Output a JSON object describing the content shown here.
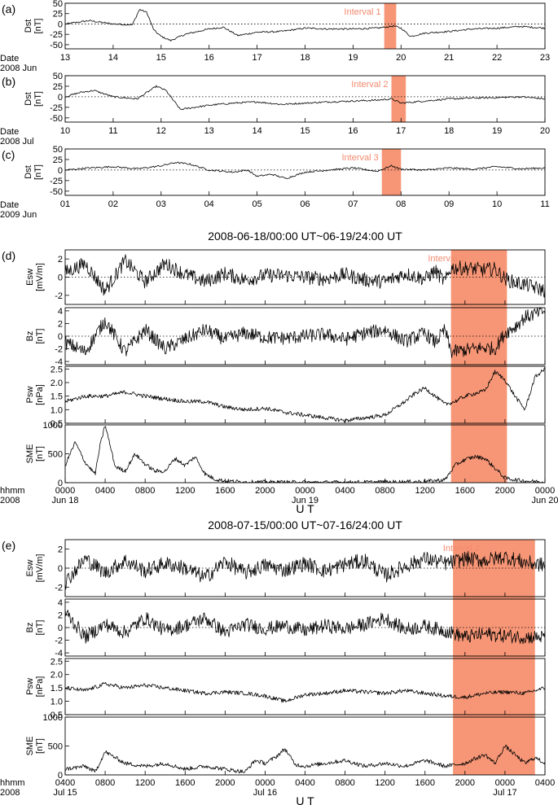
{
  "dst_panels": [
    {
      "panel_label": "(a)",
      "ylabel": [
        "Dst",
        "[nT]"
      ],
      "date_label": [
        "Date",
        "2008 Jun"
      ],
      "ticks": [
        "13",
        "14",
        "15",
        "16",
        "17",
        "18",
        "19",
        "20",
        "21",
        "22",
        "23"
      ],
      "yticks": [
        "50",
        "25",
        "0",
        "-25",
        "-50"
      ],
      "shade": {
        "label": "Interval 1",
        "color": "#f7906f"
      }
    },
    {
      "panel_label": "(b)",
      "ylabel": [
        "Dst",
        "[nT]"
      ],
      "date_label": [
        "Date",
        "2008 Jul"
      ],
      "ticks": [
        "10",
        "11",
        "12",
        "13",
        "14",
        "15",
        "16",
        "17",
        "18",
        "19",
        "20"
      ],
      "yticks": [
        "50",
        "25",
        "0",
        "-25",
        "-50"
      ],
      "shade": {
        "label": "Interval 2",
        "color": "#f7906f"
      }
    },
    {
      "panel_label": "(c)",
      "ylabel": [
        "Dst",
        "[nT]"
      ],
      "date_label": [
        "Date",
        "2009 Jun"
      ],
      "ticks": [
        "01",
        "02",
        "03",
        "04",
        "05",
        "06",
        "07",
        "08",
        "09",
        "10",
        "11"
      ],
      "yticks": [
        "50",
        "25",
        "0",
        "-25",
        "-50"
      ],
      "shade": {
        "label": "Interval 3",
        "color": "#f7906f"
      }
    }
  ],
  "groups": [
    {
      "panel_label": "(d)",
      "title": "2008-06-18/00:00 UT~06-19/24:00 UT",
      "interval_label": "Interval 1",
      "xlabel": "U T",
      "hhmm_label": [
        "hhmm",
        "2008"
      ],
      "xticks": [
        "0000",
        "0400",
        "0800",
        "1200",
        "1600",
        "2000",
        "0000",
        "0400",
        "0800",
        "1200",
        "1600",
        "2000",
        "0000"
      ],
      "xtick_dates": [
        [
          "Jun 18",
          0
        ],
        [
          "Jun 19",
          6
        ],
        [
          "Jun 20",
          12
        ]
      ],
      "panels": [
        {
          "ylabel": [
            "Esw",
            "[mV/m]"
          ],
          "yticks": [
            "2",
            "0",
            "-2"
          ]
        },
        {
          "ylabel": [
            "Bz",
            "[nT]"
          ],
          "yticks": [
            "4",
            "2",
            "0",
            "-2",
            "-4"
          ]
        },
        {
          "ylabel": [
            "Psw",
            "[nPa]"
          ],
          "yticks": [
            "2.5",
            "2.0",
            "1.5",
            "1.0",
            "0.5"
          ]
        },
        {
          "ylabel": [
            "SME",
            "[nT]"
          ],
          "yticks": [
            "1000",
            "500",
            "0"
          ]
        }
      ]
    },
    {
      "panel_label": "(e)",
      "title": "2008-07-15/00:00 UT~07-16/24:00 UT",
      "interval_label": "Interval 2",
      "xlabel": "U T",
      "hhmm_label": [
        "hhmm",
        "2008"
      ],
      "xticks": [
        "0400",
        "0800",
        "1200",
        "1600",
        "2000",
        "0000",
        "0400",
        "0800",
        "1200",
        "1600",
        "2000",
        "0000",
        "0400"
      ],
      "xtick_dates": [
        [
          "Jul 15",
          0
        ],
        [
          "Jul 16",
          5
        ],
        [
          "Jul 17",
          11
        ]
      ],
      "panels": [
        {
          "ylabel": [
            "Esw",
            "[mV/m]"
          ],
          "yticks": [
            "2",
            "0",
            "-2"
          ]
        },
        {
          "ylabel": [
            "Bz",
            "[nT]"
          ],
          "yticks": [
            "4",
            "2",
            "0",
            "-2",
            "-4"
          ]
        },
        {
          "ylabel": [
            "Psw",
            "[nPa]"
          ],
          "yticks": [
            "2.5",
            "2.0",
            "1.5",
            "1.0",
            "0.5"
          ]
        },
        {
          "ylabel": [
            "SME",
            "[nT]"
          ],
          "yticks": [
            "1000",
            "500",
            "0"
          ]
        }
      ]
    }
  ],
  "chart_data": [
    {
      "type": "line",
      "panel": "(a)",
      "ylabel": "Dst [nT]",
      "xlabel": "Date 2008 Jun",
      "xlim": [
        13,
        23
      ],
      "ylim": [
        -60,
        50
      ],
      "shaded_interval": {
        "label": "Interval 1",
        "x": [
          19.65,
          19.9
        ]
      },
      "x": [
        13.0,
        13.5,
        14.0,
        14.4,
        14.55,
        14.7,
        14.85,
        15.0,
        15.2,
        15.5,
        16.0,
        16.3,
        16.6,
        17.0,
        17.5,
        18.0,
        18.5,
        19.0,
        19.5,
        19.85,
        20.0,
        20.2,
        20.5,
        21.0,
        21.5,
        22.0,
        22.5,
        23.0
      ],
      "values": [
        0,
        8,
        0,
        -2,
        35,
        28,
        -15,
        -30,
        -40,
        -25,
        -12,
        -8,
        -28,
        -20,
        -18,
        -10,
        -12,
        -12,
        -10,
        -5,
        -10,
        -30,
        -22,
        -18,
        -12,
        -10,
        -6,
        -10
      ]
    },
    {
      "type": "line",
      "panel": "(b)",
      "ylabel": "Dst [nT]",
      "xlabel": "Date 2008 Jul",
      "xlim": [
        10,
        20
      ],
      "ylim": [
        -60,
        50
      ],
      "shaded_interval": {
        "label": "Interval 2",
        "x": [
          16.8,
          17.1
        ]
      },
      "x": [
        10.0,
        10.3,
        10.6,
        11.0,
        11.5,
        11.9,
        12.1,
        12.4,
        12.7,
        13.0,
        13.5,
        14.0,
        14.5,
        15.0,
        15.5,
        16.0,
        16.5,
        16.8,
        17.0,
        17.3,
        17.5,
        18.0,
        18.5,
        19.0,
        19.5,
        20.0
      ],
      "values": [
        0,
        10,
        15,
        0,
        -5,
        25,
        15,
        -30,
        -25,
        -20,
        -15,
        -12,
        -18,
        -15,
        -12,
        -10,
        -8,
        -5,
        -15,
        -12,
        -10,
        -5,
        -3,
        -2,
        0,
        -5
      ]
    },
    {
      "type": "line",
      "panel": "(c)",
      "ylabel": "Dst [nT]",
      "xlabel": "Date 2009 Jun",
      "xlim": [
        1,
        11
      ],
      "ylim": [
        -60,
        50
      ],
      "shaded_interval": {
        "label": "Interval 3",
        "x": [
          7.6,
          8.0
        ]
      },
      "x": [
        1.0,
        1.5,
        2.0,
        2.5,
        3.0,
        3.3,
        3.6,
        4.0,
        4.5,
        4.8,
        5.0,
        5.3,
        5.6,
        6.0,
        6.5,
        7.0,
        7.5,
        7.8,
        8.0,
        8.5,
        9.0,
        9.5,
        10.0,
        10.5,
        11.0
      ],
      "values": [
        0,
        5,
        8,
        3,
        10,
        18,
        14,
        0,
        -5,
        0,
        -15,
        -10,
        -20,
        -5,
        0,
        5,
        -3,
        10,
        2,
        0,
        5,
        2,
        8,
        3,
        5
      ]
    },
    {
      "type": "line",
      "panel": "(d)",
      "title": "2008-06-18/00:00 UT~06-19/24:00 UT",
      "xlabel": "U T",
      "x_unit": "hours since 2008-06-18 00:00 UT",
      "xlim": [
        0,
        48
      ],
      "shaded_interval": {
        "label": "Interval 1",
        "x": [
          38.6,
          44.2
        ]
      },
      "series": [
        {
          "name": "Esw [mV/m]",
          "ylim": [
            -3,
            3
          ],
          "x": [
            0,
            2,
            4,
            6,
            8,
            10,
            12,
            14,
            16,
            18,
            20,
            22,
            24,
            26,
            28,
            30,
            32,
            34,
            36,
            37,
            38,
            38.6,
            40,
            42,
            43,
            44,
            45,
            46,
            48
          ],
          "values": [
            0.5,
            1.5,
            -1.5,
            1.8,
            -0.5,
            1.5,
            0.3,
            -0.5,
            0.4,
            -0.3,
            0.2,
            0.2,
            0.0,
            -0.2,
            0.3,
            -0.3,
            -0.5,
            0.4,
            -0.2,
            0.7,
            -0.5,
            1.0,
            1.0,
            0.8,
            0.9,
            -0.2,
            -0.6,
            -0.8,
            -1.5
          ]
        },
        {
          "name": "Bz [nT]",
          "ylim": [
            -4.5,
            4.5
          ],
          "x": [
            0,
            2,
            4,
            6,
            8,
            10,
            12,
            14,
            16,
            18,
            20,
            22,
            24,
            26,
            28,
            30,
            32,
            34,
            36,
            37,
            38,
            38.6,
            40,
            42,
            43,
            44,
            45,
            46,
            48
          ],
          "values": [
            -1,
            -2.5,
            2.5,
            -2.5,
            1,
            -2,
            -0.5,
            1,
            -0.5,
            0.5,
            -0.2,
            -0.3,
            0,
            0.3,
            -0.5,
            0.5,
            1,
            -0.8,
            0.5,
            -1,
            1,
            -2.5,
            -2.2,
            -1.8,
            -2,
            0.5,
            1.5,
            3,
            4
          ]
        },
        {
          "name": "Psw [nPa]",
          "ylim": [
            0.5,
            2.6
          ],
          "x": [
            0,
            2,
            4,
            6,
            8,
            10,
            12,
            14,
            16,
            18,
            20,
            22,
            24,
            26,
            28,
            30,
            32,
            34,
            35,
            36,
            37,
            38,
            39,
            40,
            41,
            42,
            43,
            44,
            45,
            46,
            47,
            48
          ],
          "values": [
            1.3,
            1.5,
            1.5,
            1.65,
            1.5,
            1.4,
            1.3,
            1.3,
            1.1,
            1.0,
            1.05,
            0.9,
            0.8,
            0.7,
            0.6,
            0.7,
            0.8,
            1.3,
            1.6,
            1.8,
            1.5,
            1.2,
            1.3,
            1.5,
            1.6,
            1.7,
            2.4,
            2.1,
            1.5,
            1.0,
            2.2,
            2.5
          ]
        },
        {
          "name": "SME [nT]",
          "ylim": [
            0,
            1000
          ],
          "x": [
            0,
            1,
            2,
            3,
            3.5,
            4,
            5,
            6,
            7,
            8,
            9,
            10,
            11,
            12,
            13,
            14,
            15,
            16,
            18,
            20,
            24,
            28,
            32,
            36,
            38,
            39,
            40,
            41,
            42,
            43,
            44,
            45,
            46,
            48
          ],
          "values": [
            300,
            700,
            350,
            150,
            650,
            1000,
            280,
            200,
            500,
            320,
            200,
            200,
            420,
            300,
            450,
            150,
            60,
            30,
            10,
            10,
            5,
            5,
            10,
            20,
            50,
            300,
            400,
            450,
            420,
            250,
            80,
            50,
            30,
            10
          ]
        }
      ]
    },
    {
      "type": "line",
      "panel": "(e)",
      "title": "2008-07-15/00:00 UT~07-16/24:00 UT",
      "xlabel": "U T",
      "x_unit": "hours since 2008-07-15 04:00 UT",
      "xlim": [
        0,
        48
      ],
      "shaded_interval": {
        "label": "Interval 2",
        "x": [
          38.8,
          47.0
        ]
      },
      "series": [
        {
          "name": "Esw [mV/m]",
          "ylim": [
            -3,
            3
          ],
          "x": [
            0,
            2,
            4,
            6,
            8,
            10,
            12,
            14,
            16,
            18,
            20,
            22,
            24,
            26,
            28,
            30,
            32,
            34,
            36,
            38,
            39,
            40,
            42,
            44,
            46,
            48
          ],
          "values": [
            -1.5,
            1.0,
            -0.5,
            0.8,
            -0.3,
            0.5,
            0.0,
            -1.0,
            0.7,
            -0.5,
            0.3,
            -0.2,
            0.5,
            -0.3,
            0.4,
            0.8,
            -0.8,
            0.2,
            1.0,
            0.5,
            0.7,
            1.0,
            0.8,
            1.2,
            0.6,
            0.3
          ]
        },
        {
          "name": "Bz [nT]",
          "ylim": [
            -4.5,
            4.5
          ],
          "x": [
            0,
            2,
            4,
            6,
            8,
            10,
            12,
            14,
            16,
            18,
            20,
            22,
            24,
            26,
            28,
            30,
            32,
            34,
            36,
            38,
            39,
            40,
            42,
            44,
            46,
            48
          ],
          "values": [
            2.5,
            -1.5,
            0.5,
            -0.8,
            1.5,
            -0.5,
            0.3,
            1.5,
            -0.8,
            0.5,
            -0.2,
            0.3,
            -0.5,
            0.3,
            -0.2,
            0.5,
            1.5,
            -0.3,
            0.2,
            -0.5,
            -1.0,
            -1.5,
            -1.0,
            -1.3,
            -1.5,
            -1.5
          ]
        },
        {
          "name": "Psw [nPa]",
          "ylim": [
            0.5,
            2.6
          ],
          "x": [
            0,
            2,
            4,
            6,
            8,
            10,
            12,
            14,
            16,
            18,
            20,
            22,
            24,
            26,
            28,
            30,
            32,
            34,
            36,
            38,
            40,
            42,
            44,
            46,
            48
          ],
          "values": [
            1.5,
            1.4,
            1.65,
            1.5,
            1.6,
            1.5,
            1.4,
            1.3,
            1.35,
            1.3,
            1.2,
            1.0,
            1.25,
            1.3,
            1.4,
            1.35,
            1.3,
            1.4,
            1.3,
            1.2,
            1.15,
            1.3,
            1.35,
            1.3,
            1.5
          ]
        },
        {
          "name": "SME [nT]",
          "ylim": [
            0,
            1000
          ],
          "x": [
            0,
            2,
            3,
            4,
            5,
            6,
            8,
            10,
            12,
            14,
            16,
            18,
            19,
            20,
            21,
            22,
            23,
            24,
            26,
            28,
            30,
            32,
            34,
            36,
            38,
            40,
            41,
            42,
            43,
            44,
            45,
            46,
            47,
            48
          ],
          "values": [
            100,
            150,
            50,
            400,
            300,
            200,
            150,
            200,
            100,
            150,
            100,
            50,
            250,
            200,
            300,
            450,
            180,
            150,
            200,
            250,
            150,
            200,
            150,
            250,
            150,
            200,
            280,
            350,
            200,
            500,
            350,
            200,
            300,
            200
          ]
        }
      ]
    }
  ]
}
